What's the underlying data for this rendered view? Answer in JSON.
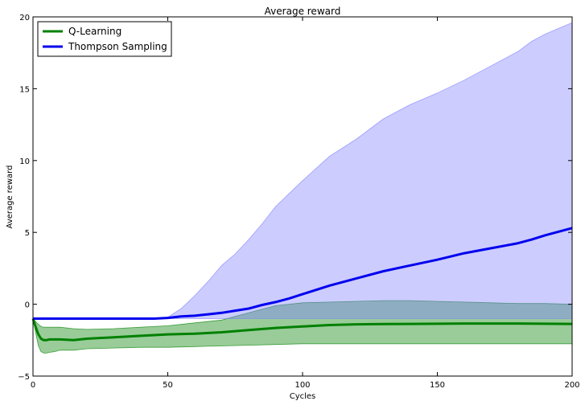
{
  "chart_data": {
    "type": "line",
    "title": "Average reward",
    "xlabel": "Cycles",
    "ylabel": "Average reward",
    "xlim": [
      0,
      200
    ],
    "ylim": [
      -5,
      20
    ],
    "xticks": [
      "0",
      "50",
      "100",
      "150",
      "200"
    ],
    "yticks": [
      "−5",
      "0",
      "5",
      "10",
      "15",
      "20"
    ],
    "legend_position": "top-left",
    "grid": false,
    "series": [
      {
        "name": "Q-Learning",
        "color": "#008000",
        "band_color": "#008000",
        "x": [
          0,
          1,
          2,
          3,
          4,
          5,
          6,
          8,
          10,
          15,
          20,
          30,
          40,
          50,
          60,
          70,
          80,
          90,
          100,
          110,
          120,
          130,
          140,
          150,
          160,
          170,
          180,
          190,
          200
        ],
        "mean": [
          -1.0,
          -1.6,
          -2.1,
          -2.4,
          -2.5,
          -2.5,
          -2.45,
          -2.45,
          -2.45,
          -2.5,
          -2.4,
          -2.3,
          -2.2,
          -2.1,
          -2.05,
          -1.95,
          -1.8,
          -1.65,
          -1.55,
          -1.45,
          -1.4,
          -1.38,
          -1.37,
          -1.36,
          -1.34,
          -1.34,
          -1.34,
          -1.36,
          -1.37
        ],
        "lower": [
          -1.0,
          -2.0,
          -2.9,
          -3.3,
          -3.4,
          -3.4,
          -3.35,
          -3.3,
          -3.2,
          -3.2,
          -3.1,
          -3.05,
          -3.0,
          -3.0,
          -2.95,
          -2.9,
          -2.85,
          -2.8,
          -2.75,
          -2.75,
          -2.75,
          -2.75,
          -2.75,
          -2.75,
          -2.75,
          -2.75,
          -2.75,
          -2.75,
          -2.75
        ],
        "upper": [
          -1.0,
          -1.2,
          -1.4,
          -1.55,
          -1.6,
          -1.6,
          -1.6,
          -1.6,
          -1.6,
          -1.7,
          -1.75,
          -1.7,
          -1.6,
          -1.5,
          -1.3,
          -1.1,
          -0.6,
          -0.1,
          0.1,
          0.15,
          0.2,
          0.25,
          0.25,
          0.2,
          0.15,
          0.1,
          0.05,
          0.05,
          0.0
        ]
      },
      {
        "name": "Thompson Sampling",
        "color": "#0000ee",
        "band_color": "#8080ff",
        "x": [
          0,
          10,
          20,
          30,
          40,
          45,
          50,
          55,
          60,
          65,
          70,
          75,
          80,
          85,
          90,
          95,
          100,
          110,
          120,
          130,
          140,
          150,
          160,
          170,
          180,
          185,
          190,
          195,
          200
        ],
        "mean": [
          -1.0,
          -1.0,
          -1.0,
          -1.0,
          -1.0,
          -1.0,
          -0.95,
          -0.85,
          -0.8,
          -0.7,
          -0.6,
          -0.45,
          -0.3,
          -0.05,
          0.15,
          0.4,
          0.7,
          1.3,
          1.8,
          2.3,
          2.7,
          3.1,
          3.55,
          3.9,
          4.25,
          4.5,
          4.8,
          5.05,
          5.3
        ],
        "lower": [
          -1.0,
          -1.0,
          -1.0,
          -1.0,
          -1.0,
          -1.0,
          -1.0,
          -1.0,
          -1.0,
          -1.0,
          -1.0,
          -1.0,
          -1.0,
          -1.0,
          -1.0,
          -1.0,
          -1.0,
          -1.0,
          -1.0,
          -1.0,
          -1.0,
          -1.0,
          -1.0,
          -1.0,
          -1.0,
          -1.0,
          -1.0,
          -1.0,
          -1.0
        ],
        "upper": [
          -1.0,
          -1.0,
          -1.0,
          -1.0,
          -1.0,
          -1.0,
          -0.9,
          -0.3,
          0.6,
          1.6,
          2.7,
          3.5,
          4.5,
          5.6,
          6.8,
          7.7,
          8.6,
          10.3,
          11.5,
          12.9,
          13.9,
          14.7,
          15.6,
          16.6,
          17.6,
          18.3,
          18.8,
          19.2,
          19.6
        ]
      }
    ]
  }
}
